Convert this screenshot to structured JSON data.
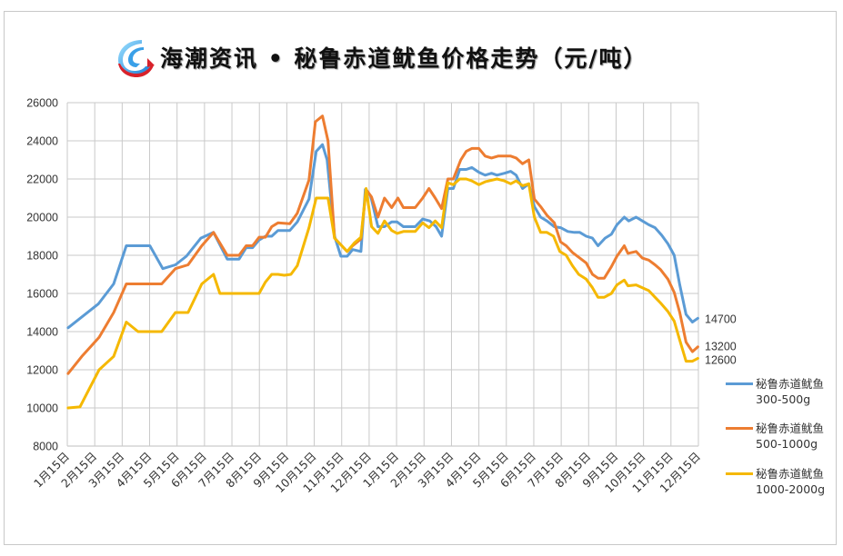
{
  "title": "海潮资讯 • 秘鲁赤道鱿鱼价格走势（元/吨）",
  "logo_icon": "haichao-logo-icon",
  "chart_data": {
    "type": "line",
    "title": "海潮资讯 • 秘鲁赤道鱿鱼价格走势（元/吨）",
    "xlabel": "",
    "ylabel": "",
    "ylim": [
      8000,
      26000
    ],
    "yticks": [
      8000,
      10000,
      12000,
      14000,
      16000,
      18000,
      20000,
      22000,
      24000,
      26000
    ],
    "grid": true,
    "legend_position": "right",
    "categories": [
      "1月15日",
      "2月15日",
      "3月15日",
      "4月15日",
      "5月15日",
      "6月15日",
      "7月15日",
      "8月15日",
      "9月15日",
      "10月15日",
      "11月15日",
      "12月15日",
      "1月15日",
      "2月15日",
      "3月15日",
      "4月15日",
      "5月15日",
      "6月15日",
      "7月15日",
      "8月15日",
      "9月15日",
      "10月15日",
      "11月15日",
      "12月15日"
    ],
    "x_unit": "months since first 1月15日 (fractional)",
    "series": [
      {
        "name": "秘鲁赤道鱿鱼 300-500g",
        "legend_lines": [
          "秘鲁赤道鱿鱼",
          "300-500g"
        ],
        "color": "#5b9bd5",
        "end_label": "14700",
        "points": [
          [
            0.03,
            14200
          ],
          [
            1.13,
            15450
          ],
          [
            1.69,
            16500
          ],
          [
            2.15,
            18500
          ],
          [
            3.01,
            18500
          ],
          [
            3.48,
            17300
          ],
          [
            3.94,
            17500
          ],
          [
            4.34,
            17950
          ],
          [
            4.87,
            18900
          ],
          [
            5.33,
            19200
          ],
          [
            5.83,
            17800
          ],
          [
            6.26,
            17800
          ],
          [
            6.52,
            18400
          ],
          [
            6.75,
            18400
          ],
          [
            6.99,
            18800
          ],
          [
            7.22,
            19000
          ],
          [
            7.45,
            19000
          ],
          [
            7.68,
            19300
          ],
          [
            8.11,
            19300
          ],
          [
            8.38,
            19750
          ],
          [
            8.81,
            20950
          ],
          [
            9.07,
            23450
          ],
          [
            9.3,
            23800
          ],
          [
            9.47,
            23000
          ],
          [
            9.74,
            19000
          ],
          [
            9.97,
            17950
          ],
          [
            10.2,
            17950
          ],
          [
            10.4,
            18300
          ],
          [
            10.7,
            18200
          ],
          [
            10.86,
            21450
          ],
          [
            11.06,
            21100
          ],
          [
            11.32,
            19500
          ],
          [
            11.56,
            19500
          ],
          [
            11.82,
            19750
          ],
          [
            12.02,
            19750
          ],
          [
            12.25,
            19500
          ],
          [
            12.68,
            19500
          ],
          [
            12.95,
            19900
          ],
          [
            13.21,
            19800
          ],
          [
            13.44,
            19500
          ],
          [
            13.64,
            19000
          ],
          [
            13.87,
            21500
          ],
          [
            14.07,
            21500
          ],
          [
            14.3,
            22500
          ],
          [
            14.54,
            22500
          ],
          [
            14.74,
            22600
          ],
          [
            15.0,
            22350
          ],
          [
            15.23,
            22200
          ],
          [
            15.46,
            22300
          ],
          [
            15.66,
            22200
          ],
          [
            15.93,
            22300
          ],
          [
            16.16,
            22400
          ],
          [
            16.36,
            22200
          ],
          [
            16.59,
            21500
          ],
          [
            16.82,
            21750
          ],
          [
            17.02,
            20550
          ],
          [
            17.25,
            20000
          ],
          [
            17.48,
            19800
          ],
          [
            17.75,
            19500
          ],
          [
            17.98,
            19450
          ],
          [
            18.24,
            19250
          ],
          [
            18.48,
            19200
          ],
          [
            18.68,
            19200
          ],
          [
            18.91,
            19000
          ],
          [
            19.14,
            18900
          ],
          [
            19.34,
            18500
          ],
          [
            19.6,
            18900
          ],
          [
            19.83,
            19100
          ],
          [
            20.03,
            19600
          ],
          [
            20.3,
            20000
          ],
          [
            20.46,
            19800
          ],
          [
            20.73,
            20000
          ],
          [
            20.96,
            19800
          ],
          [
            21.19,
            19600
          ],
          [
            21.42,
            19450
          ],
          [
            21.66,
            19050
          ],
          [
            21.89,
            18600
          ],
          [
            22.12,
            18000
          ],
          [
            22.32,
            16450
          ],
          [
            22.55,
            14900
          ],
          [
            22.78,
            14500
          ],
          [
            22.98,
            14700
          ]
        ]
      },
      {
        "name": "秘鲁赤道鱿鱼 500-1000g",
        "legend_lines": [
          "秘鲁赤道鱿鱼",
          "500-1000g"
        ],
        "color": "#ed7d31",
        "end_label": "13200",
        "points": [
          [
            0.03,
            11800
          ],
          [
            0.53,
            12700
          ],
          [
            1.16,
            13700
          ],
          [
            1.69,
            15000
          ],
          [
            2.15,
            16500
          ],
          [
            3.44,
            16500
          ],
          [
            3.94,
            17300
          ],
          [
            4.4,
            17500
          ],
          [
            4.9,
            18500
          ],
          [
            5.33,
            19200
          ],
          [
            5.83,
            18000
          ],
          [
            6.26,
            18000
          ],
          [
            6.52,
            18500
          ],
          [
            6.75,
            18500
          ],
          [
            6.99,
            18950
          ],
          [
            7.22,
            18950
          ],
          [
            7.45,
            19500
          ],
          [
            7.68,
            19700
          ],
          [
            8.11,
            19650
          ],
          [
            8.38,
            20200
          ],
          [
            8.81,
            21950
          ],
          [
            9.04,
            25000
          ],
          [
            9.3,
            25300
          ],
          [
            9.5,
            24000
          ],
          [
            9.74,
            18900
          ],
          [
            10.2,
            18200
          ],
          [
            10.4,
            18500
          ],
          [
            10.7,
            18850
          ],
          [
            10.89,
            21450
          ],
          [
            11.09,
            21050
          ],
          [
            11.32,
            20000
          ],
          [
            11.56,
            21000
          ],
          [
            11.82,
            20500
          ],
          [
            12.05,
            21000
          ],
          [
            12.25,
            20500
          ],
          [
            12.68,
            20500
          ],
          [
            12.95,
            21000
          ],
          [
            13.18,
            21500
          ],
          [
            13.41,
            21000
          ],
          [
            13.64,
            20450
          ],
          [
            13.87,
            22000
          ],
          [
            14.07,
            22000
          ],
          [
            14.34,
            23000
          ],
          [
            14.54,
            23450
          ],
          [
            14.74,
            23600
          ],
          [
            15.0,
            23600
          ],
          [
            15.23,
            23200
          ],
          [
            15.46,
            23100
          ],
          [
            15.7,
            23200
          ],
          [
            16.16,
            23200
          ],
          [
            16.36,
            23100
          ],
          [
            16.59,
            22800
          ],
          [
            16.82,
            23000
          ],
          [
            17.02,
            20950
          ],
          [
            17.25,
            20550
          ],
          [
            17.48,
            20100
          ],
          [
            17.75,
            19700
          ],
          [
            17.98,
            18700
          ],
          [
            18.18,
            18500
          ],
          [
            18.41,
            18150
          ],
          [
            18.68,
            17850
          ],
          [
            18.91,
            17600
          ],
          [
            19.14,
            17000
          ],
          [
            19.34,
            16800
          ],
          [
            19.57,
            16800
          ],
          [
            19.83,
            17400
          ],
          [
            20.03,
            17950
          ],
          [
            20.3,
            18500
          ],
          [
            20.43,
            18100
          ],
          [
            20.73,
            18200
          ],
          [
            20.96,
            17850
          ],
          [
            21.19,
            17750
          ],
          [
            21.42,
            17500
          ],
          [
            21.62,
            17250
          ],
          [
            21.89,
            16750
          ],
          [
            22.12,
            16050
          ],
          [
            22.32,
            15000
          ],
          [
            22.55,
            13450
          ],
          [
            22.78,
            12950
          ],
          [
            22.98,
            13200
          ]
        ]
      },
      {
        "name": "秘鲁赤道鱿鱼 1000-2000g",
        "legend_lines": [
          "秘鲁赤道鱿鱼",
          "1000-2000g"
        ],
        "color": "#f5b800",
        "end_label": "12600",
        "points": [
          [
            0.03,
            10000
          ],
          [
            0.46,
            10050
          ],
          [
            1.16,
            12000
          ],
          [
            1.69,
            12700
          ],
          [
            2.15,
            14500
          ],
          [
            2.58,
            14000
          ],
          [
            3.44,
            14000
          ],
          [
            3.94,
            15000
          ],
          [
            4.4,
            15000
          ],
          [
            4.9,
            16500
          ],
          [
            5.33,
            17000
          ],
          [
            5.56,
            16000
          ],
          [
            6.99,
            16000
          ],
          [
            7.22,
            16600
          ],
          [
            7.45,
            17000
          ],
          [
            7.68,
            17000
          ],
          [
            7.91,
            16950
          ],
          [
            8.15,
            17000
          ],
          [
            8.38,
            17450
          ],
          [
            8.81,
            19450
          ],
          [
            9.07,
            21000
          ],
          [
            9.5,
            21000
          ],
          [
            9.74,
            18900
          ],
          [
            10.2,
            18200
          ],
          [
            10.46,
            18650
          ],
          [
            10.7,
            18950
          ],
          [
            10.89,
            21500
          ],
          [
            11.09,
            19500
          ],
          [
            11.32,
            19150
          ],
          [
            11.56,
            19800
          ],
          [
            11.82,
            19300
          ],
          [
            12.02,
            19150
          ],
          [
            12.25,
            19250
          ],
          [
            12.68,
            19250
          ],
          [
            12.95,
            19700
          ],
          [
            13.18,
            19450
          ],
          [
            13.41,
            19800
          ],
          [
            13.64,
            19450
          ],
          [
            13.87,
            21800
          ],
          [
            14.07,
            21700
          ],
          [
            14.3,
            22000
          ],
          [
            14.54,
            22000
          ],
          [
            14.74,
            21900
          ],
          [
            15.0,
            21700
          ],
          [
            15.23,
            21850
          ],
          [
            15.66,
            22000
          ],
          [
            15.93,
            21900
          ],
          [
            16.16,
            21750
          ],
          [
            16.36,
            21900
          ],
          [
            16.59,
            21650
          ],
          [
            16.82,
            21750
          ],
          [
            17.02,
            20000
          ],
          [
            17.25,
            19200
          ],
          [
            17.48,
            19200
          ],
          [
            17.72,
            19000
          ],
          [
            17.95,
            18200
          ],
          [
            18.18,
            18000
          ],
          [
            18.41,
            17450
          ],
          [
            18.64,
            17000
          ],
          [
            18.91,
            16750
          ],
          [
            19.14,
            16300
          ],
          [
            19.34,
            15800
          ],
          [
            19.57,
            15800
          ],
          [
            19.83,
            16000
          ],
          [
            20.03,
            16450
          ],
          [
            20.3,
            16700
          ],
          [
            20.43,
            16400
          ],
          [
            20.73,
            16450
          ],
          [
            20.96,
            16300
          ],
          [
            21.19,
            16150
          ],
          [
            21.42,
            15800
          ],
          [
            21.62,
            15500
          ],
          [
            21.89,
            15050
          ],
          [
            22.12,
            14550
          ],
          [
            22.32,
            13550
          ],
          [
            22.55,
            12450
          ],
          [
            22.78,
            12450
          ],
          [
            22.98,
            12600
          ]
        ]
      }
    ]
  },
  "legend": {
    "items": [
      {
        "line1": "秘鲁赤道鱿鱼",
        "line2": "300-500g",
        "color": "#5b9bd5"
      },
      {
        "line1": "秘鲁赤道鱿鱼",
        "line2": "500-1000g",
        "color": "#ed7d31"
      },
      {
        "line1": "秘鲁赤道鱿鱼",
        "line2": "1000-2000g",
        "color": "#f5b800"
      }
    ]
  }
}
